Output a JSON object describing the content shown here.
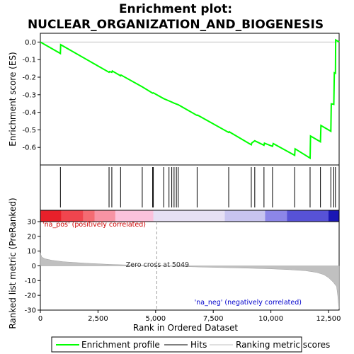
{
  "chart_data": {
    "type": "line",
    "title": "Enrichment plot:\nNUCLEAR_ORGANIZATION_AND_BIOGENESIS",
    "top_panel": {
      "ylabel": "Enrichment score (ES)",
      "ylim": [
        -0.7,
        0.05
      ],
      "yticks": [
        "0.0",
        "-0.1",
        "-0.2",
        "-0.3",
        "-0.4",
        "-0.5",
        "-0.6"
      ],
      "yticks_values": [
        0.0,
        -0.1,
        -0.2,
        -0.3,
        -0.4,
        -0.5,
        -0.6
      ],
      "series_color": "#00ff00",
      "es_profile": [
        [
          0,
          0.0
        ],
        [
          870,
          -0.065
        ],
        [
          880,
          -0.015
        ],
        [
          2980,
          -0.172
        ],
        [
          3000,
          -0.168
        ],
        [
          3100,
          -0.172
        ],
        [
          3120,
          -0.165
        ],
        [
          3480,
          -0.192
        ],
        [
          3500,
          -0.188
        ],
        [
          4420,
          -0.255
        ],
        [
          4870,
          -0.291
        ],
        [
          4900,
          -0.289
        ],
        [
          5350,
          -0.322
        ],
        [
          5580,
          -0.335
        ],
        [
          5700,
          -0.342
        ],
        [
          5800,
          -0.348
        ],
        [
          5900,
          -0.353
        ],
        [
          5980,
          -0.357
        ],
        [
          6800,
          -0.418
        ],
        [
          6820,
          -0.416
        ],
        [
          8170,
          -0.515
        ],
        [
          8190,
          -0.511
        ],
        [
          9150,
          -0.585
        ],
        [
          9170,
          -0.575
        ],
        [
          9300,
          -0.562
        ],
        [
          9700,
          -0.588
        ],
        [
          9720,
          -0.576
        ],
        [
          10070,
          -0.594
        ],
        [
          10100,
          -0.578
        ],
        [
          11030,
          -0.645
        ],
        [
          11050,
          -0.608
        ],
        [
          11700,
          -0.661
        ],
        [
          11720,
          -0.535
        ],
        [
          12150,
          -0.568
        ],
        [
          12170,
          -0.475
        ],
        [
          12600,
          -0.508
        ],
        [
          12620,
          -0.352
        ],
        [
          12730,
          -0.355
        ],
        [
          12750,
          -0.175
        ],
        [
          12800,
          -0.178
        ],
        [
          12810,
          0.012
        ],
        [
          12960,
          0.0
        ]
      ]
    },
    "hits": [
      870,
      2980,
      3100,
      3480,
      4420,
      4870,
      4900,
      5350,
      5580,
      5700,
      5800,
      5900,
      5980,
      6800,
      8170,
      9150,
      9300,
      9700,
      10070,
      11030,
      11700,
      12150,
      12600,
      12730,
      12800
    ],
    "colorbar": [
      {
        "from": 0,
        "to": 900,
        "color": "#e8202a"
      },
      {
        "from": 900,
        "to": 1850,
        "color": "#f0454e"
      },
      {
        "from": 1850,
        "to": 2350,
        "color": "#f46b72"
      },
      {
        "from": 2350,
        "to": 3250,
        "color": "#f793a4"
      },
      {
        "from": 3250,
        "to": 4900,
        "color": "#fbc2dc"
      },
      {
        "from": 4900,
        "to": 8000,
        "color": "#e6e0f4"
      },
      {
        "from": 8000,
        "to": 9750,
        "color": "#c8c4f0"
      },
      {
        "from": 9750,
        "to": 10700,
        "color": "#8c86e8"
      },
      {
        "from": 10700,
        "to": 12500,
        "color": "#5752d6"
      },
      {
        "from": 12500,
        "to": 12960,
        "color": "#1a16b4"
      }
    ],
    "bottom_panel": {
      "ylabel": "Ranked list metric (PreRanked)",
      "xlabel": "Rank in Ordered Dataset",
      "ylim": [
        -30,
        30
      ],
      "yticks": [
        "30",
        "20",
        "10",
        "0",
        "-10",
        "-20",
        "-30"
      ],
      "yticks_values": [
        30,
        20,
        10,
        0,
        -10,
        -20,
        -30
      ],
      "xlim": [
        0,
        12960
      ],
      "xticks": [
        "0",
        "2,500",
        "5,000",
        "7,500",
        "10,000",
        "12,500"
      ],
      "xticks_values": [
        0,
        2500,
        5000,
        7500,
        10000,
        12500
      ],
      "zero_cross_rank": 5049,
      "zero_cross_label": "Zero cross at 5049",
      "pos_label": "'na_pos' (positively correlated)",
      "neg_label": "'na_neg' (negatively correlated)",
      "metric_curve": [
        [
          0,
          8.5
        ],
        [
          60,
          6.0
        ],
        [
          200,
          4.8
        ],
        [
          500,
          3.8
        ],
        [
          1000,
          2.8
        ],
        [
          2000,
          1.8
        ],
        [
          3000,
          1.0
        ],
        [
          4000,
          0.5
        ],
        [
          5049,
          0.0
        ],
        [
          6000,
          -0.4
        ],
        [
          7000,
          -0.8
        ],
        [
          8000,
          -1.2
        ],
        [
          9000,
          -1.6
        ],
        [
          10000,
          -2.0
        ],
        [
          10800,
          -2.6
        ],
        [
          11500,
          -3.3
        ],
        [
          12000,
          -4.5
        ],
        [
          12300,
          -6.0
        ],
        [
          12500,
          -8.0
        ],
        [
          12700,
          -11.0
        ],
        [
          12850,
          -14.0
        ],
        [
          12900,
          -20.0
        ],
        [
          12950,
          -29.0
        ],
        [
          12960,
          -29.0
        ]
      ]
    },
    "legend": {
      "items": [
        {
          "label": "Enrichment profile",
          "color": "#00ff00"
        },
        {
          "label": "Hits",
          "color": "#000000"
        },
        {
          "label": "Ranking metric scores",
          "color": "#c0c0c0"
        }
      ]
    }
  }
}
